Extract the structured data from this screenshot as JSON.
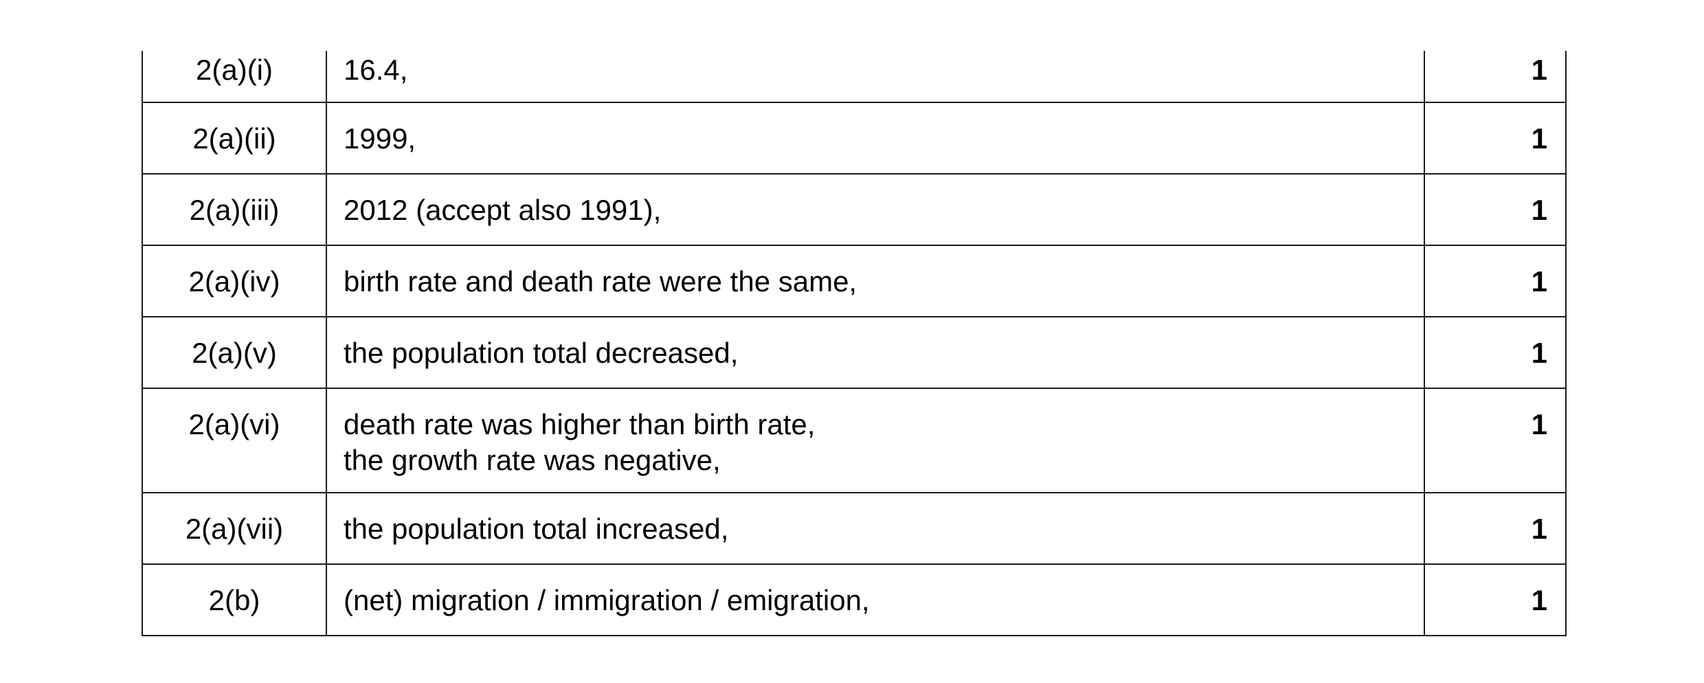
{
  "rows": [
    {
      "question": "2(a)(i)",
      "answer": [
        "16.4,"
      ],
      "mark": "1"
    },
    {
      "question": "2(a)(ii)",
      "answer": [
        "1999,"
      ],
      "mark": "1"
    },
    {
      "question": "2(a)(iii)",
      "answer": [
        "2012 (accept also 1991),"
      ],
      "mark": "1"
    },
    {
      "question": "2(a)(iv)",
      "answer": [
        "birth rate and death rate were the same,"
      ],
      "mark": "1"
    },
    {
      "question": "2(a)(v)",
      "answer": [
        "the population total decreased,"
      ],
      "mark": "1"
    },
    {
      "question": "2(a)(vi)",
      "answer": [
        "death rate was higher than birth rate,",
        "the growth rate was negative,"
      ],
      "mark": "1"
    },
    {
      "question": "2(a)(vii)",
      "answer": [
        "the population total increased,"
      ],
      "mark": "1"
    },
    {
      "question": "2(b)",
      "answer": [
        "(net) migration / immigration / emigration,"
      ],
      "mark": "1"
    }
  ]
}
